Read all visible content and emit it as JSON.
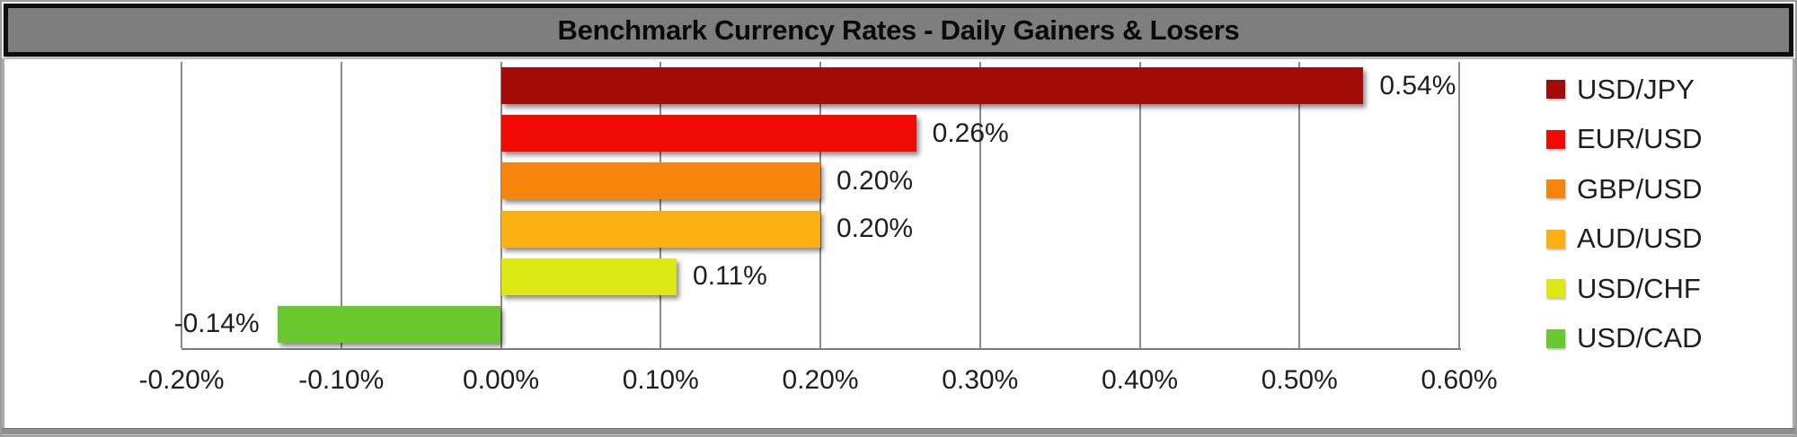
{
  "window": {
    "title_bar": {
      "text": "Benchmark Currency Rates - Daily Gainers & Losers",
      "background": "#7E7E7E",
      "border_color": "#0D0D0D"
    }
  },
  "chart_data": {
    "type": "bar",
    "orientation": "horizontal",
    "title": "Benchmark Currency Rates - Daily Gainers & Losers",
    "categories": [
      "USD/JPY",
      "EUR/USD",
      "GBP/USD",
      "AUD/USD",
      "USD/CHF",
      "USD/CAD"
    ],
    "values": [
      0.54,
      0.26,
      0.2,
      0.2,
      0.11,
      -0.14
    ],
    "value_labels": [
      "0.54%",
      "0.26%",
      "0.20%",
      "0.20%",
      "0.11%",
      "-0.14%"
    ],
    "bar_colors": [
      "#A50B06",
      "#F00A02",
      "#F8830D",
      "#FAAF12",
      "#DCE714",
      "#6AC82F"
    ],
    "xlabel": "",
    "ylabel": "",
    "x_axis": {
      "min": -0.2,
      "max": 0.6,
      "step": 0.1,
      "tick_labels": [
        "-0.20%",
        "-0.10%",
        "0.00%",
        "0.10%",
        "0.20%",
        "0.30%",
        "0.40%",
        "0.50%",
        "0.60%"
      ]
    },
    "grid": true,
    "legend_position": "right",
    "legend": [
      {
        "label": "USD/JPY",
        "color": "#A50B06"
      },
      {
        "label": "EUR/USD",
        "color": "#F00A02"
      },
      {
        "label": "GBP/USD",
        "color": "#F8830D"
      },
      {
        "label": "AUD/USD",
        "color": "#FAAF12"
      },
      {
        "label": "USD/CHF",
        "color": "#DCE714"
      },
      {
        "label": "USD/CAD",
        "color": "#6AC82F"
      }
    ]
  },
  "styles": {
    "grid_color": "#8A8A8A",
    "axis_color": "#7A7A7A",
    "text_color": "#1E1E1E"
  }
}
